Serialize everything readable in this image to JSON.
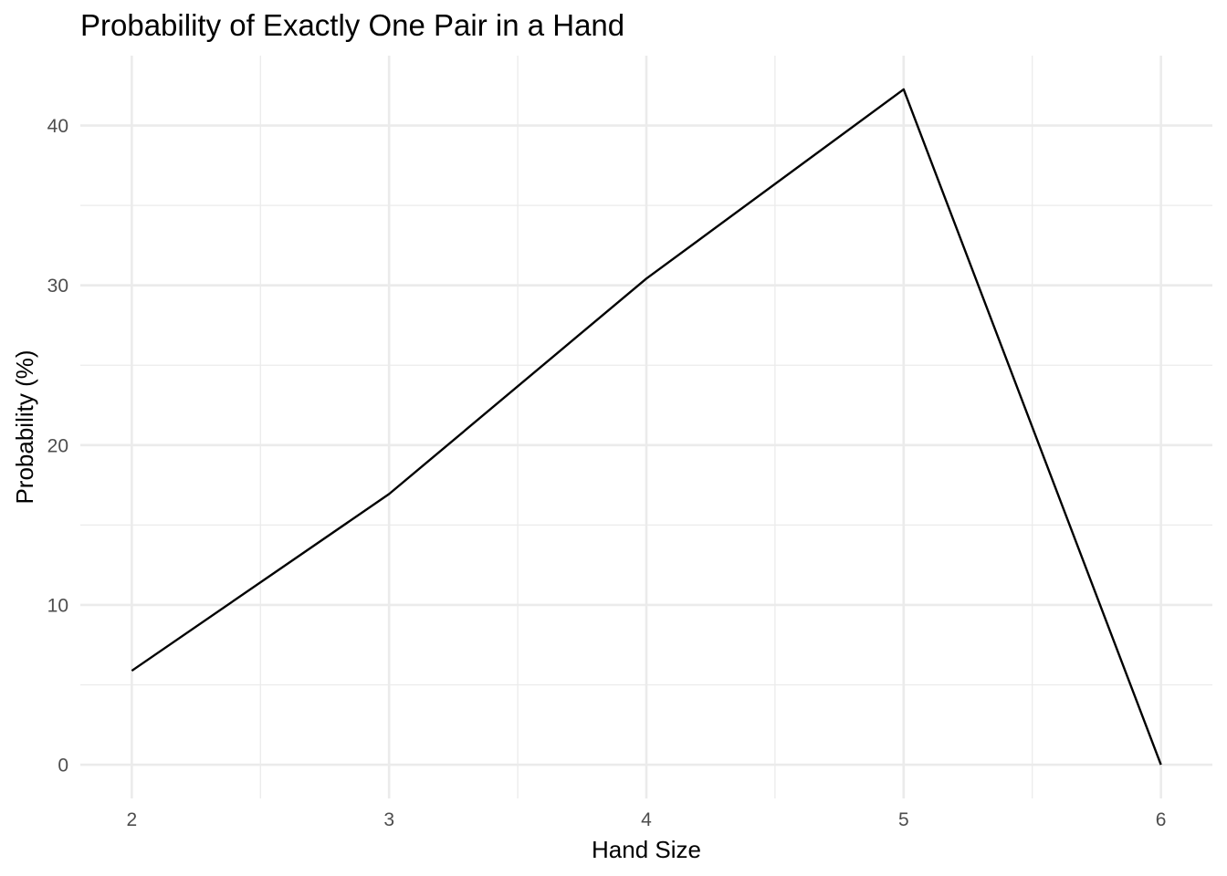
{
  "chart_data": {
    "type": "line",
    "title": "Probability of Exactly One Pair in a Hand",
    "xlabel": "Hand Size",
    "ylabel": "Probability (%)",
    "x": [
      2,
      3,
      4,
      5,
      6
    ],
    "series": [
      {
        "values": [
          5.88,
          16.94,
          30.42,
          42.26,
          0
        ]
      }
    ],
    "xlim": [
      1.8,
      6.2
    ],
    "ylim": [
      -2.11,
      44.37
    ],
    "x_ticks": [
      2,
      3,
      4,
      5,
      6
    ],
    "x_tick_labels": [
      "2",
      "3",
      "4",
      "5",
      "6"
    ],
    "y_ticks": [
      0,
      10,
      20,
      30,
      40
    ],
    "y_tick_labels": [
      "0",
      "10",
      "20",
      "30",
      "40"
    ],
    "x_minor_ticks": [
      2.5,
      3.5,
      4.5,
      5.5
    ],
    "y_minor_ticks": [
      5,
      15,
      25,
      35
    ],
    "grid": true,
    "legend": "none",
    "colors": {
      "line": "#000000",
      "grid": "#ebebeb",
      "tick_text": "#4d4d4d",
      "background": "#ffffff"
    }
  }
}
